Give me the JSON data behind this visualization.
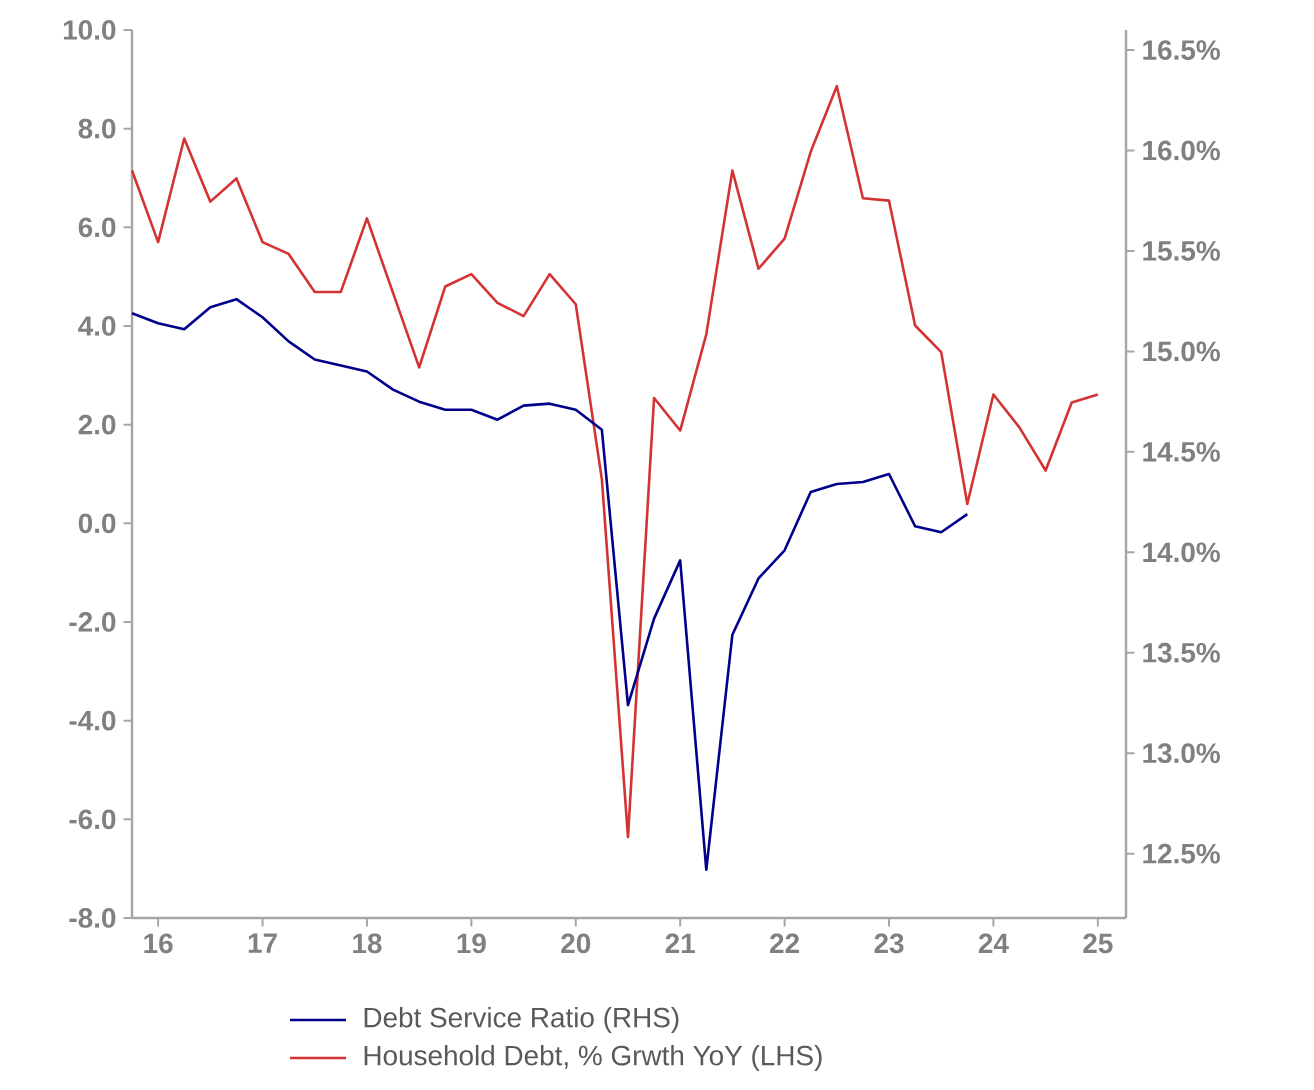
{
  "chart_data": {
    "type": "line",
    "x": [
      15.75,
      16,
      16.25,
      16.5,
      16.75,
      17,
      17.25,
      17.5,
      17.75,
      18,
      18.25,
      18.5,
      18.75,
      19,
      19.25,
      19.5,
      19.75,
      20,
      20.25,
      20.5,
      20.75,
      21,
      21.25,
      21.5,
      21.75,
      22,
      22.25,
      22.5,
      22.75,
      23,
      23.25,
      23.5,
      23.75,
      24,
      24.25,
      24.5,
      24.75,
      25
    ],
    "series": [
      {
        "name": "Debt Service Ratio (RHS)",
        "color": "#00008b",
        "axis": "y2",
        "values": [
          15.19,
          15.14,
          15.11,
          15.22,
          15.26,
          15.17,
          15.05,
          14.96,
          14.93,
          14.9,
          14.81,
          14.75,
          14.71,
          14.71,
          14.66,
          14.73,
          14.74,
          14.71,
          14.61,
          13.24,
          13.67,
          13.96,
          12.42,
          13.59,
          13.87,
          14.01,
          14.3,
          14.34,
          14.35,
          14.39,
          14.13,
          14.1,
          14.19,
          null,
          null,
          null,
          null,
          null
        ]
      },
      {
        "name": "Household Debt, % Grwth YoY (LHS)",
        "color": "#d43333",
        "axis": "y",
        "values": [
          7.15,
          5.7,
          7.8,
          6.52,
          6.99,
          5.7,
          5.46,
          4.69,
          4.69,
          6.18,
          4.67,
          3.16,
          4.8,
          5.05,
          4.47,
          4.2,
          5.05,
          4.44,
          0.89,
          -6.36,
          2.54,
          1.88,
          3.83,
          7.15,
          5.16,
          5.77,
          7.53,
          8.86,
          6.59,
          6.54,
          4.01,
          3.47,
          0.39,
          2.61,
          1.94,
          1.07,
          2.45,
          2.61
        ]
      }
    ],
    "xlim": [
      15.75,
      25.27
    ],
    "xticks": [
      16,
      17,
      18,
      19,
      20,
      21,
      22,
      23,
      24,
      25
    ],
    "ylim": [
      -8,
      10
    ],
    "yticks": [
      {
        "value": -8,
        "label": "-8.0"
      },
      {
        "value": -6,
        "label": "-6.0"
      },
      {
        "value": -4,
        "label": "-4.0"
      },
      {
        "value": -2,
        "label": "-2.0"
      },
      {
        "value": 0,
        "label": "0.0"
      },
      {
        "value": 2,
        "label": "2.0"
      },
      {
        "value": 4,
        "label": "4.0"
      },
      {
        "value": 6,
        "label": "6.0"
      },
      {
        "value": 8,
        "label": "8.0"
      },
      {
        "value": 10,
        "label": "10.0"
      }
    ],
    "y2lim": [
      12.18,
      16.6
    ],
    "y2ticks": [
      {
        "value": 12.5,
        "label": "12.5%"
      },
      {
        "value": 13,
        "label": "13.0%"
      },
      {
        "value": 13.5,
        "label": "13.5%"
      },
      {
        "value": 14,
        "label": "14.0%"
      },
      {
        "value": 14.5,
        "label": "14.5%"
      },
      {
        "value": 15,
        "label": "15.0%"
      },
      {
        "value": 15.5,
        "label": "15.5%"
      },
      {
        "value": 16,
        "label": "16.0%"
      },
      {
        "value": 16.5,
        "label": "16.5%"
      }
    ],
    "grid": false,
    "legend": "bottom",
    "marker": "none",
    "line_style": "solid"
  }
}
